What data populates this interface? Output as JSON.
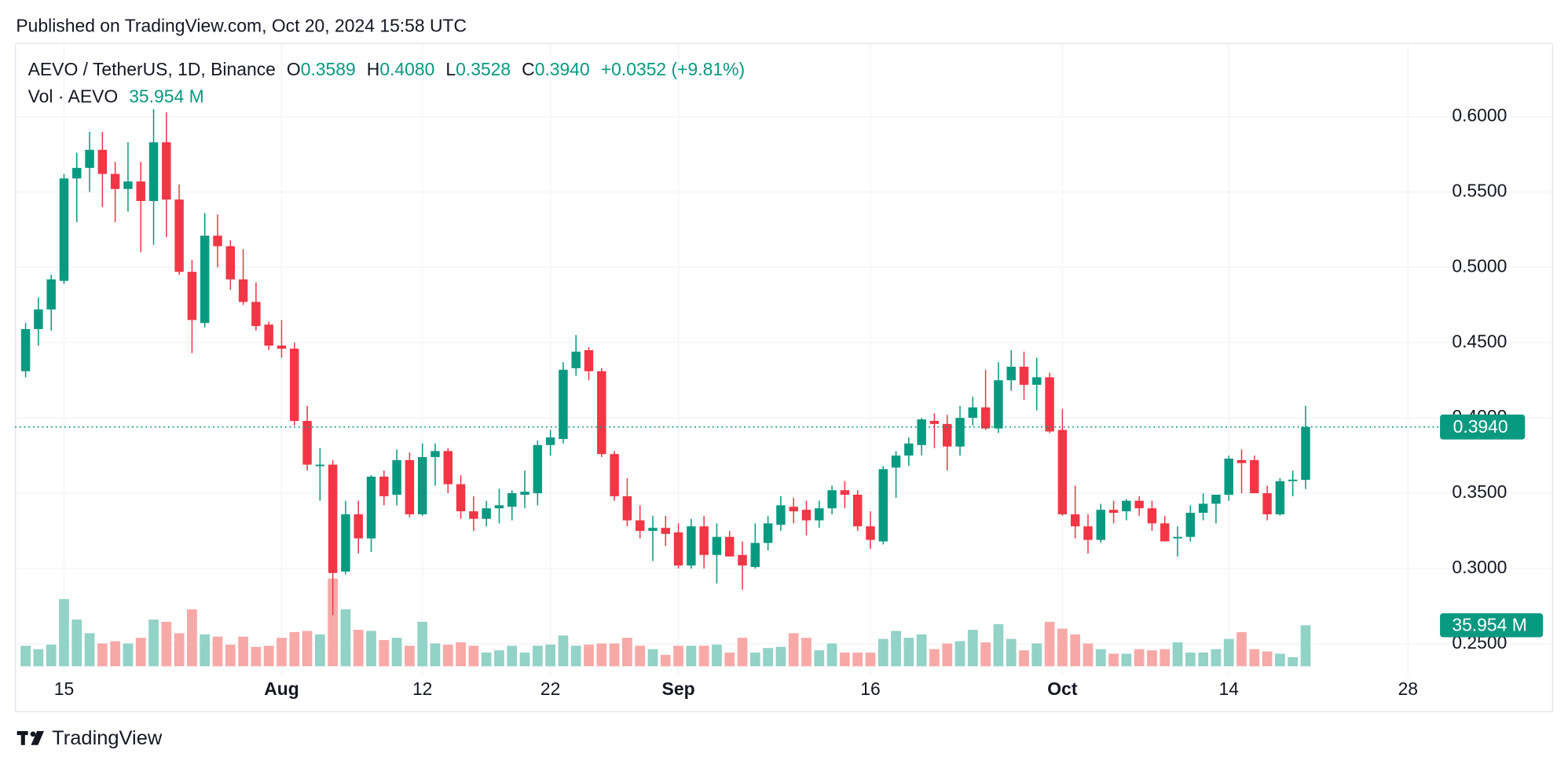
{
  "header": {
    "published": "Published on TradingView.com, Oct 20, 2024 15:58 UTC"
  },
  "footer": {
    "brand": "TradingView"
  },
  "chart_data": {
    "type": "candlestick",
    "legend": {
      "symbol": "AEVO / TetherUS, 1D, Binance",
      "open_key": "O",
      "open_label": "0.3589",
      "high_key": "H",
      "high_label": "0.4080",
      "low_key": "L",
      "low_label": "0.3528",
      "close_key": "C",
      "close_label": "0.3940",
      "change_label": "+0.0352 (+9.81%)",
      "volume_name": "Vol · AEVO",
      "volume_label": "35.954 M"
    },
    "up_color": "#089981",
    "down_color": "#f23645",
    "volume_up_color": "#92d2c7",
    "volume_down_color": "#f7a9a7",
    "grid": true,
    "xlim": [
      "2024-07-11",
      "2024-11-08"
    ],
    "xticks": [
      {
        "value": "2024-07-15",
        "label": "15"
      },
      {
        "value": "2024-08-01",
        "label": "Aug"
      },
      {
        "value": "2024-08-12",
        "label": "12"
      },
      {
        "value": "2024-08-22",
        "label": "22"
      },
      {
        "value": "2024-09-01",
        "label": "Sep"
      },
      {
        "value": "2024-09-16",
        "label": "16"
      },
      {
        "value": "2024-10-01",
        "label": "Oct"
      },
      {
        "value": "2024-10-14",
        "label": "14"
      },
      {
        "value": "2024-10-28",
        "label": "28"
      }
    ],
    "ylim": [
      0.23,
      0.65
    ],
    "yticks": [
      {
        "value": 0.25,
        "label": "0.2500"
      },
      {
        "value": 0.3,
        "label": "0.3000"
      },
      {
        "value": 0.35,
        "label": "0.3500"
      },
      {
        "value": 0.4,
        "label": "0.4000"
      },
      {
        "value": 0.45,
        "label": "0.4500"
      },
      {
        "value": 0.5,
        "label": "0.5000"
      },
      {
        "value": 0.55,
        "label": "0.5500"
      },
      {
        "value": 0.6,
        "label": "0.6000"
      }
    ],
    "volume_lim": [
      0,
      175
    ],
    "x": [
      "2024-07-12",
      "2024-07-13",
      "2024-07-14",
      "2024-07-15",
      "2024-07-16",
      "2024-07-17",
      "2024-07-18",
      "2024-07-19",
      "2024-07-20",
      "2024-07-21",
      "2024-07-22",
      "2024-07-23",
      "2024-07-24",
      "2024-07-25",
      "2024-07-26",
      "2024-07-27",
      "2024-07-28",
      "2024-07-29",
      "2024-07-30",
      "2024-07-31",
      "2024-08-01",
      "2024-08-02",
      "2024-08-03",
      "2024-08-04",
      "2024-08-05",
      "2024-08-06",
      "2024-08-07",
      "2024-08-08",
      "2024-08-09",
      "2024-08-10",
      "2024-08-11",
      "2024-08-12",
      "2024-08-13",
      "2024-08-14",
      "2024-08-15",
      "2024-08-16",
      "2024-08-17",
      "2024-08-18",
      "2024-08-19",
      "2024-08-20",
      "2024-08-21",
      "2024-08-22",
      "2024-08-23",
      "2024-08-24",
      "2024-08-25",
      "2024-08-26",
      "2024-08-27",
      "2024-08-28",
      "2024-08-29",
      "2024-08-30",
      "2024-08-31",
      "2024-09-01",
      "2024-09-02",
      "2024-09-03",
      "2024-09-04",
      "2024-09-05",
      "2024-09-06",
      "2024-09-07",
      "2024-09-08",
      "2024-09-09",
      "2024-09-10",
      "2024-09-11",
      "2024-09-12",
      "2024-09-13",
      "2024-09-14",
      "2024-09-15",
      "2024-09-16",
      "2024-09-17",
      "2024-09-18",
      "2024-09-19",
      "2024-09-20",
      "2024-09-21",
      "2024-09-22",
      "2024-09-23",
      "2024-09-24",
      "2024-09-25",
      "2024-09-26",
      "2024-09-27",
      "2024-09-28",
      "2024-09-29",
      "2024-09-30",
      "2024-10-01",
      "2024-10-02",
      "2024-10-03",
      "2024-10-04",
      "2024-10-05",
      "2024-10-06",
      "2024-10-07",
      "2024-10-08",
      "2024-10-09",
      "2024-10-10",
      "2024-10-11",
      "2024-10-12",
      "2024-10-13",
      "2024-10-14",
      "2024-10-15",
      "2024-10-16",
      "2024-10-17",
      "2024-10-18",
      "2024-10-19",
      "2024-10-20"
    ],
    "open": [
      0.431,
      0.459,
      0.472,
      0.491,
      0.559,
      0.566,
      0.578,
      0.562,
      0.552,
      0.557,
      0.544,
      0.583,
      0.545,
      0.497,
      0.463,
      0.521,
      0.514,
      0.492,
      0.477,
      0.462,
      0.448,
      0.446,
      0.398,
      0.368,
      0.369,
      0.298,
      0.336,
      0.32,
      0.361,
      0.349,
      0.372,
      0.336,
      0.374,
      0.378,
      0.356,
      0.338,
      0.333,
      0.34,
      0.341,
      0.349,
      0.35,
      0.382,
      0.386,
      0.433,
      0.445,
      0.431,
      0.376,
      0.348,
      0.332,
      0.325,
      0.327,
      0.324,
      0.302,
      0.328,
      0.309,
      0.321,
      0.309,
      0.301,
      0.317,
      0.329,
      0.341,
      0.339,
      0.332,
      0.34,
      0.352,
      0.349,
      0.328,
      0.318,
      0.367,
      0.375,
      0.382,
      0.398,
      0.396,
      0.381,
      0.4,
      0.407,
      0.393,
      0.425,
      0.434,
      0.422,
      0.427,
      0.392,
      0.336,
      0.328,
      0.319,
      0.339,
      0.338,
      0.345,
      0.34,
      0.33,
      0.32,
      0.321,
      0.337,
      0.343,
      0.349,
      0.372,
      0.372,
      0.35,
      0.336,
      0.358,
      0.3589
    ],
    "high": [
      0.463,
      0.48,
      0.495,
      0.562,
      0.576,
      0.59,
      0.59,
      0.57,
      0.583,
      0.57,
      0.605,
      0.603,
      0.555,
      0.505,
      0.536,
      0.535,
      0.518,
      0.512,
      0.49,
      0.464,
      0.465,
      0.45,
      0.408,
      0.38,
      0.372,
      0.345,
      0.345,
      0.362,
      0.365,
      0.379,
      0.377,
      0.383,
      0.383,
      0.38,
      0.362,
      0.348,
      0.345,
      0.353,
      0.352,
      0.365,
      0.385,
      0.392,
      0.437,
      0.455,
      0.447,
      0.433,
      0.378,
      0.36,
      0.342,
      0.335,
      0.335,
      0.33,
      0.333,
      0.335,
      0.33,
      0.325,
      0.318,
      0.33,
      0.335,
      0.348,
      0.347,
      0.345,
      0.345,
      0.355,
      0.358,
      0.352,
      0.338,
      0.368,
      0.378,
      0.387,
      0.4,
      0.403,
      0.402,
      0.408,
      0.414,
      0.432,
      0.437,
      0.445,
      0.444,
      0.44,
      0.43,
      0.406,
      0.355,
      0.336,
      0.343,
      0.345,
      0.346,
      0.348,
      0.345,
      0.335,
      0.328,
      0.342,
      0.35,
      0.348,
      0.375,
      0.379,
      0.375,
      0.355,
      0.36,
      0.365,
      0.408
    ],
    "low": [
      0.427,
      0.448,
      0.458,
      0.489,
      0.53,
      0.55,
      0.54,
      0.53,
      0.537,
      0.51,
      0.515,
      0.52,
      0.495,
      0.443,
      0.46,
      0.5,
      0.485,
      0.475,
      0.458,
      0.445,
      0.44,
      0.395,
      0.365,
      0.345,
      0.269,
      0.296,
      0.31,
      0.311,
      0.342,
      0.342,
      0.334,
      0.335,
      0.355,
      0.35,
      0.333,
      0.325,
      0.328,
      0.33,
      0.332,
      0.34,
      0.342,
      0.375,
      0.383,
      0.428,
      0.425,
      0.374,
      0.345,
      0.328,
      0.32,
      0.305,
      0.315,
      0.3,
      0.3,
      0.3,
      0.29,
      0.308,
      0.286,
      0.3,
      0.312,
      0.325,
      0.33,
      0.322,
      0.327,
      0.336,
      0.34,
      0.325,
      0.313,
      0.316,
      0.347,
      0.368,
      0.375,
      0.38,
      0.365,
      0.375,
      0.395,
      0.392,
      0.39,
      0.418,
      0.412,
      0.405,
      0.39,
      0.335,
      0.32,
      0.31,
      0.317,
      0.33,
      0.332,
      0.335,
      0.325,
      0.318,
      0.308,
      0.318,
      0.332,
      0.33,
      0.345,
      0.35,
      0.35,
      0.332,
      0.335,
      0.348,
      0.3528
    ],
    "close": [
      0.459,
      0.472,
      0.492,
      0.559,
      0.566,
      0.578,
      0.562,
      0.552,
      0.557,
      0.544,
      0.583,
      0.545,
      0.497,
      0.465,
      0.521,
      0.514,
      0.492,
      0.477,
      0.461,
      0.448,
      0.446,
      0.398,
      0.369,
      0.369,
      0.297,
      0.336,
      0.32,
      0.361,
      0.348,
      0.372,
      0.336,
      0.374,
      0.378,
      0.356,
      0.338,
      0.333,
      0.34,
      0.342,
      0.35,
      0.351,
      0.382,
      0.387,
      0.432,
      0.444,
      0.431,
      0.376,
      0.348,
      0.332,
      0.325,
      0.327,
      0.323,
      0.302,
      0.328,
      0.309,
      0.321,
      0.308,
      0.302,
      0.317,
      0.33,
      0.342,
      0.338,
      0.332,
      0.34,
      0.352,
      0.349,
      0.328,
      0.319,
      0.366,
      0.375,
      0.383,
      0.399,
      0.396,
      0.381,
      0.4,
      0.407,
      0.393,
      0.425,
      0.434,
      0.422,
      0.427,
      0.391,
      0.336,
      0.328,
      0.319,
      0.339,
      0.337,
      0.345,
      0.34,
      0.33,
      0.318,
      0.321,
      0.337,
      0.343,
      0.349,
      0.373,
      0.37,
      0.35,
      0.336,
      0.358,
      0.359,
      0.394
    ],
    "volume": [
      18,
      15,
      19,
      59,
      41,
      29,
      20,
      22,
      20,
      25,
      41,
      39,
      29,
      50,
      28,
      26,
      19,
      26,
      17,
      18,
      25,
      30,
      31,
      28,
      77,
      50,
      32,
      31,
      23,
      25,
      18,
      39,
      20,
      19,
      21,
      18,
      12,
      14,
      18,
      12,
      18,
      19,
      27,
      18,
      19,
      20,
      20,
      25,
      18,
      15,
      10,
      18,
      18,
      18,
      19,
      12,
      25,
      12,
      16,
      17,
      29,
      25,
      14,
      20,
      12,
      12,
      12,
      24,
      31,
      25,
      28,
      15,
      20,
      22,
      32,
      21,
      37,
      24,
      14,
      20,
      39,
      33,
      28,
      20,
      15,
      11,
      11,
      15,
      14,
      15,
      21,
      12,
      12,
      15,
      24,
      30,
      15,
      13,
      11,
      8,
      35.954
    ]
  }
}
